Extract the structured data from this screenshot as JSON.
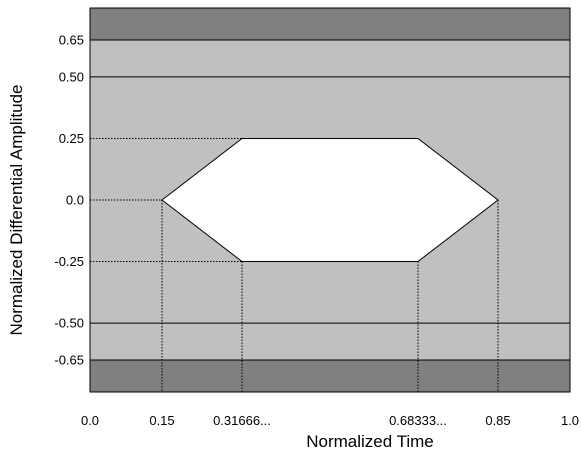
{
  "axes": {
    "xlabel": "Normalized Time",
    "ylabel": "Normalized Differential Amplitude",
    "x_ticks": [
      {
        "value": 0.0,
        "label": "0.0"
      },
      {
        "value": 0.15,
        "label": "0.15"
      },
      {
        "value": 0.31666,
        "label": "0.31666..."
      },
      {
        "value": 0.68333,
        "label": "0.68333..."
      },
      {
        "value": 0.85,
        "label": "0.85"
      },
      {
        "value": 1.0,
        "label": "1.0"
      }
    ],
    "y_ticks": [
      {
        "value": 0.65,
        "label": "0.65"
      },
      {
        "value": 0.5,
        "label": "0.50"
      },
      {
        "value": 0.25,
        "label": "0.25"
      },
      {
        "value": 0.0,
        "label": "0.0"
      },
      {
        "value": -0.25,
        "label": "-0.25"
      },
      {
        "value": -0.5,
        "label": "-0.50"
      },
      {
        "value": -0.65,
        "label": "-0.65"
      }
    ],
    "xlim": [
      0.0,
      1.0
    ],
    "ylim": [
      -0.78,
      0.78
    ]
  },
  "eye_mask": {
    "polygon": [
      [
        0.15,
        0.0
      ],
      [
        0.31666,
        0.25
      ],
      [
        0.68333,
        0.25
      ],
      [
        0.85,
        0.0
      ],
      [
        0.68333,
        -0.25
      ],
      [
        0.31666,
        -0.25
      ]
    ],
    "solid_lines_y": [
      0.65,
      0.5,
      -0.5,
      -0.65
    ]
  },
  "colors": {
    "forbidden_outer": "#808080",
    "region": "#c0c0c0",
    "eye_opening": "#ffffff",
    "lines": "#000000"
  }
}
